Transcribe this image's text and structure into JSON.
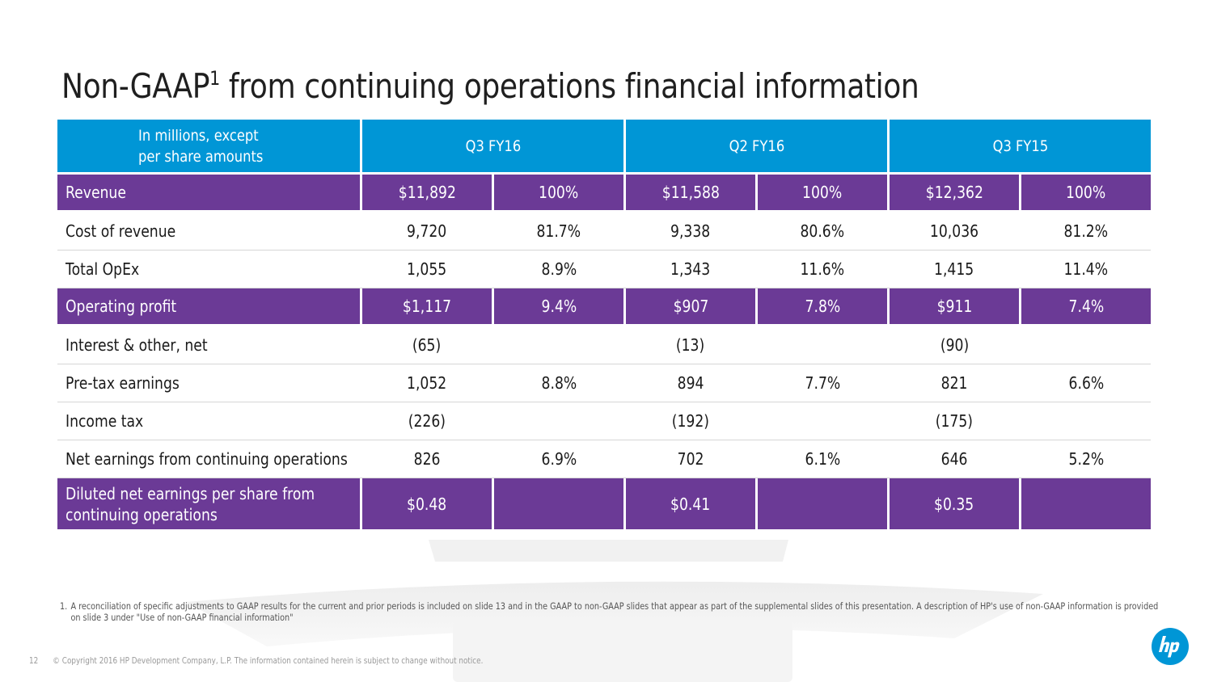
{
  "slide": {
    "title_main": "Non-GAAP",
    "title_sup": "1",
    "title_rest": " from continuing operations financial information",
    "page_number": "12",
    "copyright": "© Copyright 2016 HP Development Company, L.P. The information contained herein is subject to change without notice.",
    "footnote_number": "1.",
    "footnote_text": "A reconciliation of specific adjustments to GAAP results for the current and prior periods is included on slide 13 and in the GAAP to non-GAAP slides that appear as part of the supplemental slides of this presentation. A description of HP's use of non-GAAP information is provided on slide 3 under \"Use of non-GAAP financial information\"",
    "logo": "hp-logo",
    "colors": {
      "header_blue": "#0096d6",
      "highlight_purple": "#6b3a96",
      "logo_blue": "#0096d6"
    }
  },
  "table": {
    "header_label": [
      "In millions, except",
      "per share amounts"
    ],
    "periods": [
      "Q3 FY16",
      "Q2 FY16",
      "Q3 FY15"
    ],
    "rows": [
      {
        "label": "Revenue",
        "highlight": true,
        "cells": [
          "$11,892",
          "100%",
          "$11,588",
          "100%",
          "$12,362",
          "100%"
        ]
      },
      {
        "label": "Cost of revenue",
        "highlight": false,
        "cells": [
          "9,720",
          "81.7%",
          "9,338",
          "80.6%",
          "10,036",
          "81.2%"
        ]
      },
      {
        "label": "Total OpEx",
        "highlight": false,
        "cells": [
          "1,055",
          "8.9%",
          "1,343",
          "11.6%",
          "1,415",
          "11.4%"
        ]
      },
      {
        "label": "Operating profit",
        "highlight": true,
        "cells": [
          "$1,117",
          "9.4%",
          "$907",
          "7.8%",
          "$911",
          "7.4%"
        ]
      },
      {
        "label": "Interest & other, net",
        "highlight": false,
        "cells": [
          "(65)",
          "",
          "(13)",
          "",
          "(90)",
          ""
        ]
      },
      {
        "label": "Pre-tax earnings",
        "highlight": false,
        "cells": [
          "1,052",
          "8.8%",
          "894",
          "7.7%",
          "821",
          "6.6%"
        ]
      },
      {
        "label": "Income tax",
        "highlight": false,
        "cells": [
          "(226)",
          "",
          "(192)",
          "",
          "(175)",
          ""
        ]
      },
      {
        "label": "Net earnings from continuing operations",
        "highlight": false,
        "cells": [
          "826",
          "6.9%",
          "702",
          "6.1%",
          "646",
          "5.2%"
        ]
      },
      {
        "label": "Diluted net earnings per share from continuing operations",
        "highlight": true,
        "cells": [
          "$0.48",
          "",
          "$0.41",
          "",
          "$0.35",
          ""
        ]
      }
    ]
  }
}
